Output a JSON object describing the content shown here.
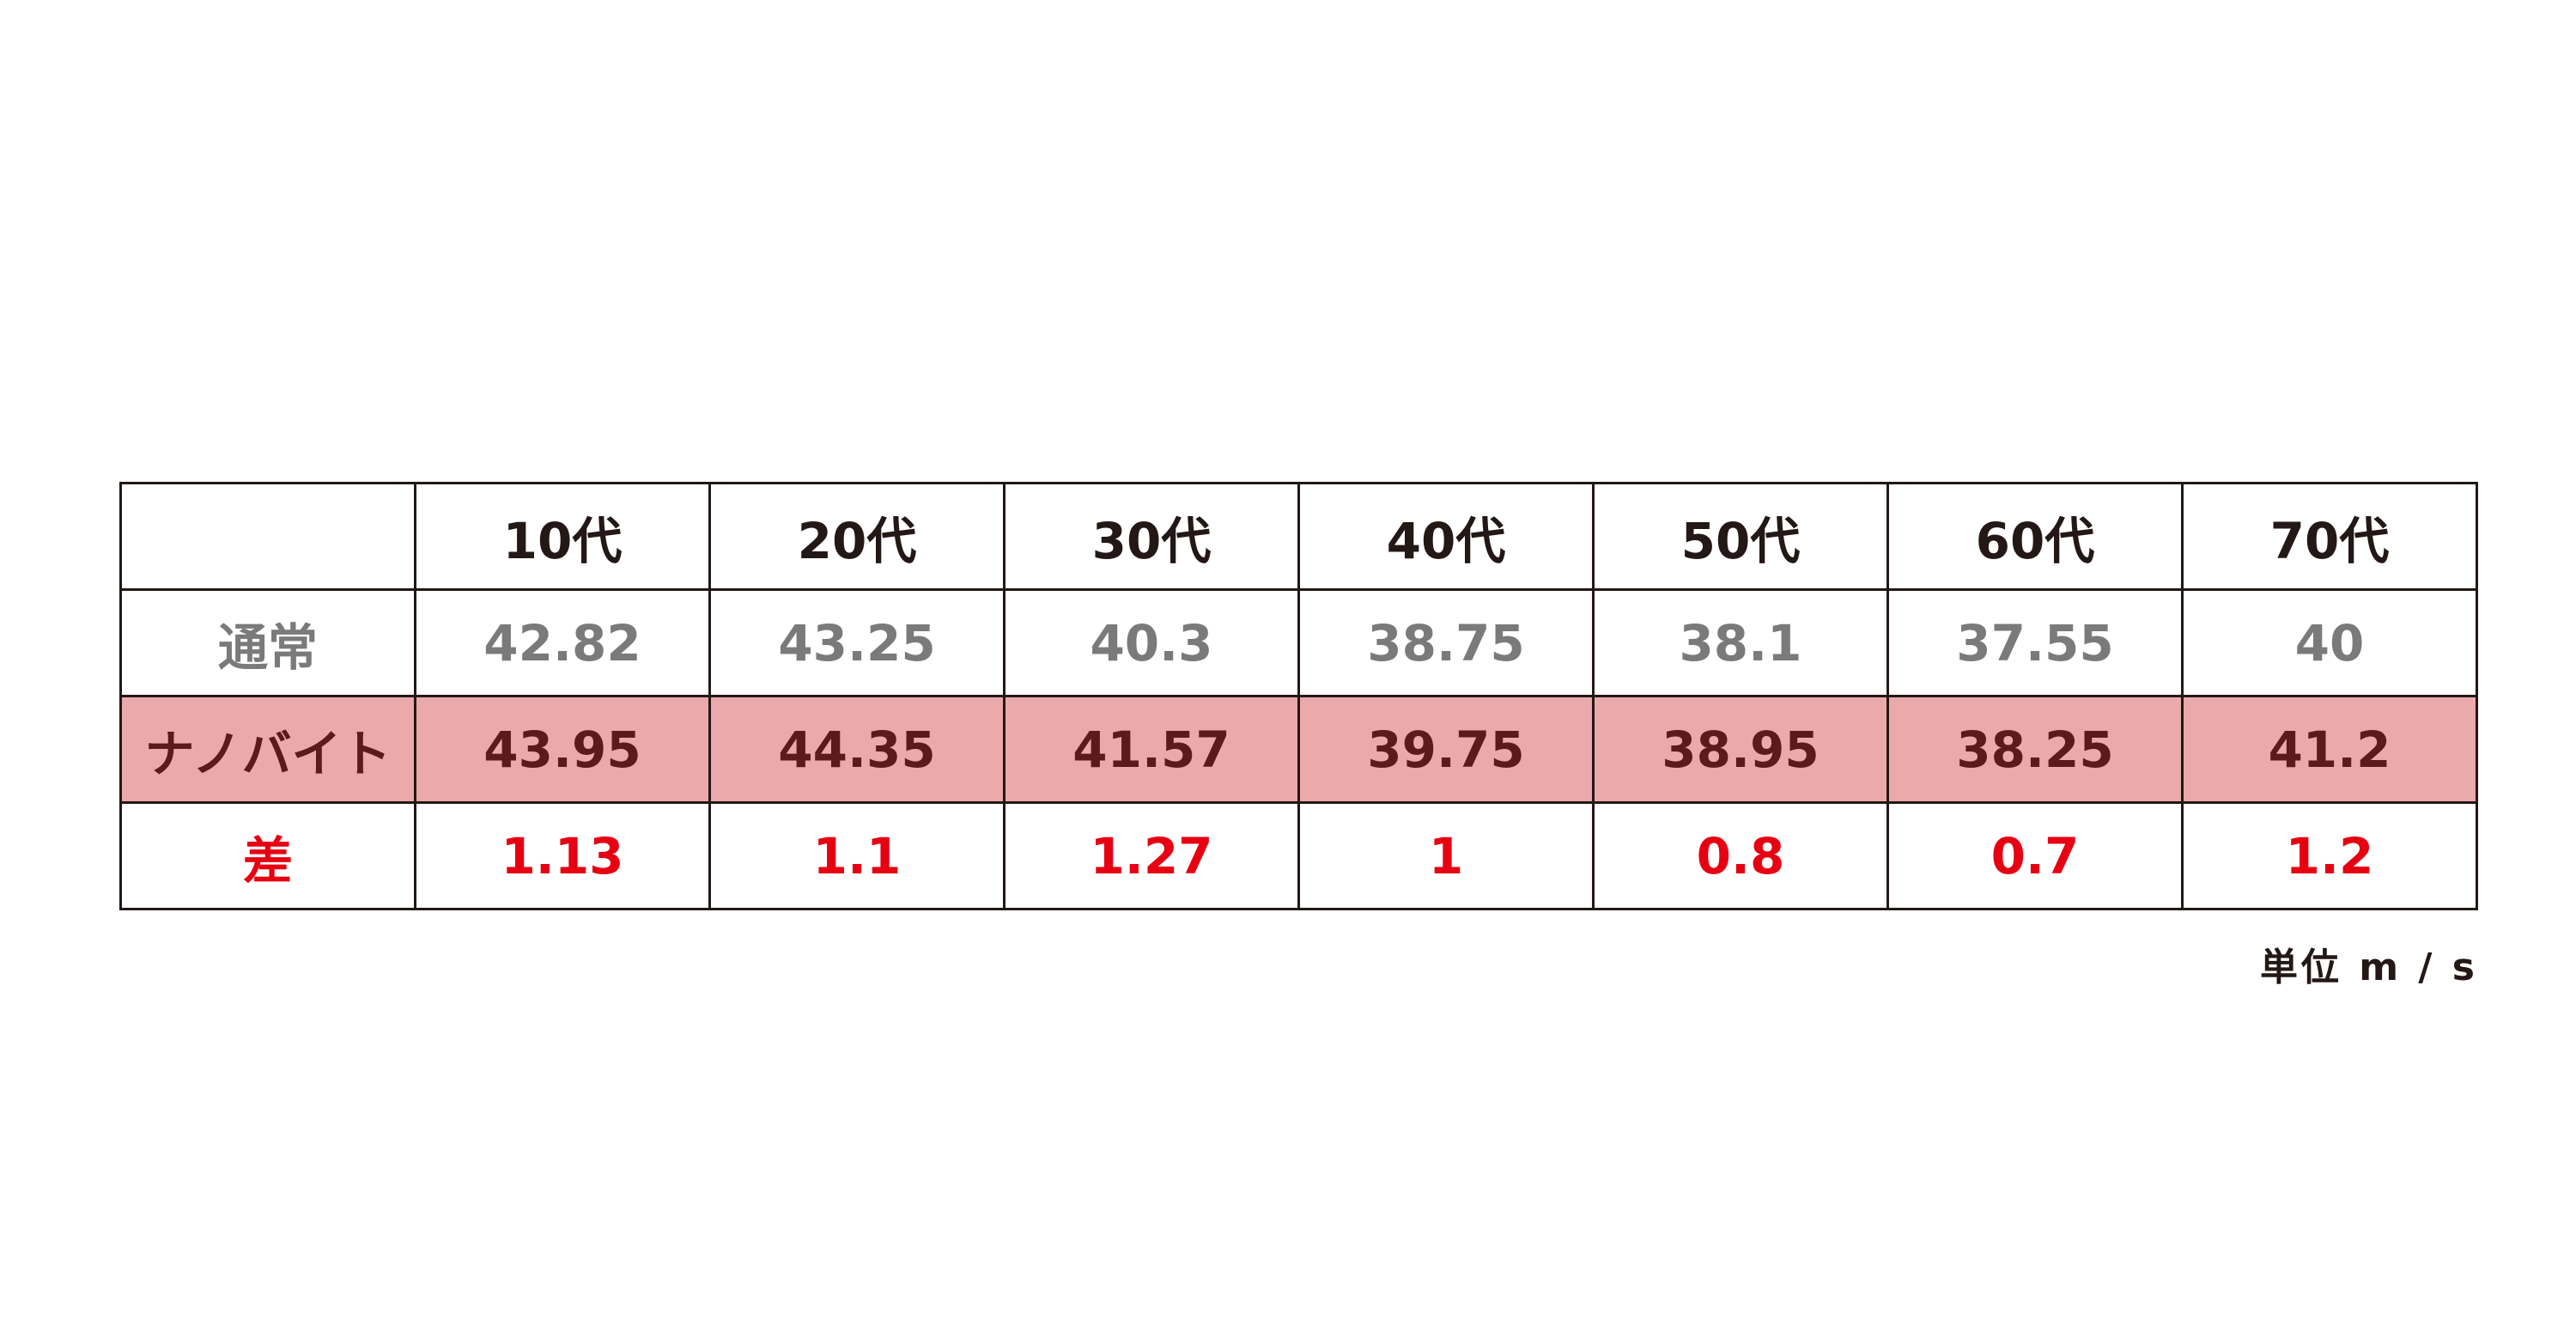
{
  "table": {
    "columns": [
      "10代",
      "20代",
      "30代",
      "40代",
      "50代",
      "60代",
      "70代"
    ],
    "rows": [
      {
        "label": "通常",
        "cells": [
          "42.82",
          "43.25",
          "40.3",
          "38.75",
          "38.1",
          "37.55",
          "40"
        ]
      },
      {
        "label": "ナノバイト",
        "cells": [
          "43.95",
          "44.35",
          "41.57",
          "39.75",
          "38.95",
          "38.25",
          "41.2"
        ]
      },
      {
        "label": "差",
        "cells": [
          "1.13",
          "1.1",
          "1.27",
          "1",
          "0.8",
          "0.7",
          "1.2"
        ]
      }
    ]
  },
  "unit": "単位 m / s"
}
